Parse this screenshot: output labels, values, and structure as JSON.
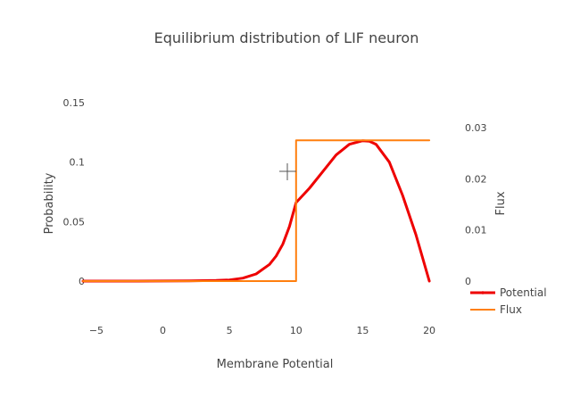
{
  "chart_data": {
    "type": "line",
    "title": "Equilibrium distribution of LIF neuron",
    "xlabel": "Membrane Potential",
    "ylabel": "Probability",
    "y2label": "Flux",
    "xlim": [
      -6,
      21
    ],
    "ylim": [
      0,
      0.15
    ],
    "y2lim": [
      0,
      0.03
    ],
    "xticks": [
      {
        "v": -5,
        "label": "−5"
      },
      {
        "v": 0,
        "label": "0"
      },
      {
        "v": 5,
        "label": "5"
      },
      {
        "v": 10,
        "label": "10"
      },
      {
        "v": 15,
        "label": "15"
      },
      {
        "v": 20,
        "label": "20"
      }
    ],
    "yticks": [
      {
        "v": 0,
        "label": "0"
      },
      {
        "v": 0.05,
        "label": "0.05"
      },
      {
        "v": 0.1,
        "label": "0.1"
      },
      {
        "v": 0.15,
        "label": "0.15"
      }
    ],
    "y2ticks": [
      {
        "v": 0,
        "label": "0"
      },
      {
        "v": 0.01,
        "label": "0.01"
      },
      {
        "v": 0.02,
        "label": "0.02"
      },
      {
        "v": 0.03,
        "label": "0.03"
      }
    ],
    "grid": false,
    "legend_position": "bottom-right",
    "series": [
      {
        "name": "Potential",
        "axis": "y",
        "color": "#ee0000",
        "x": [
          -6,
          -4,
          -2,
          0,
          2,
          4,
          5,
          6,
          7,
          8,
          8.5,
          9,
          9.5,
          10,
          11,
          12,
          13,
          14,
          15,
          15.5,
          16,
          17,
          18,
          19,
          20
        ],
        "y": [
          0,
          0,
          0,
          0.0001,
          0.0002,
          0.0005,
          0.001,
          0.0025,
          0.006,
          0.014,
          0.021,
          0.031,
          0.046,
          0.066,
          0.078,
          0.092,
          0.106,
          0.115,
          0.118,
          0.1175,
          0.115,
          0.1,
          0.072,
          0.039,
          0
        ]
      },
      {
        "name": "Flux",
        "axis": "y2",
        "color": "#ff7f0e",
        "x": [
          -6,
          10,
          10,
          20
        ],
        "y": [
          0,
          0,
          0.0275,
          0.0275
        ]
      }
    ]
  }
}
